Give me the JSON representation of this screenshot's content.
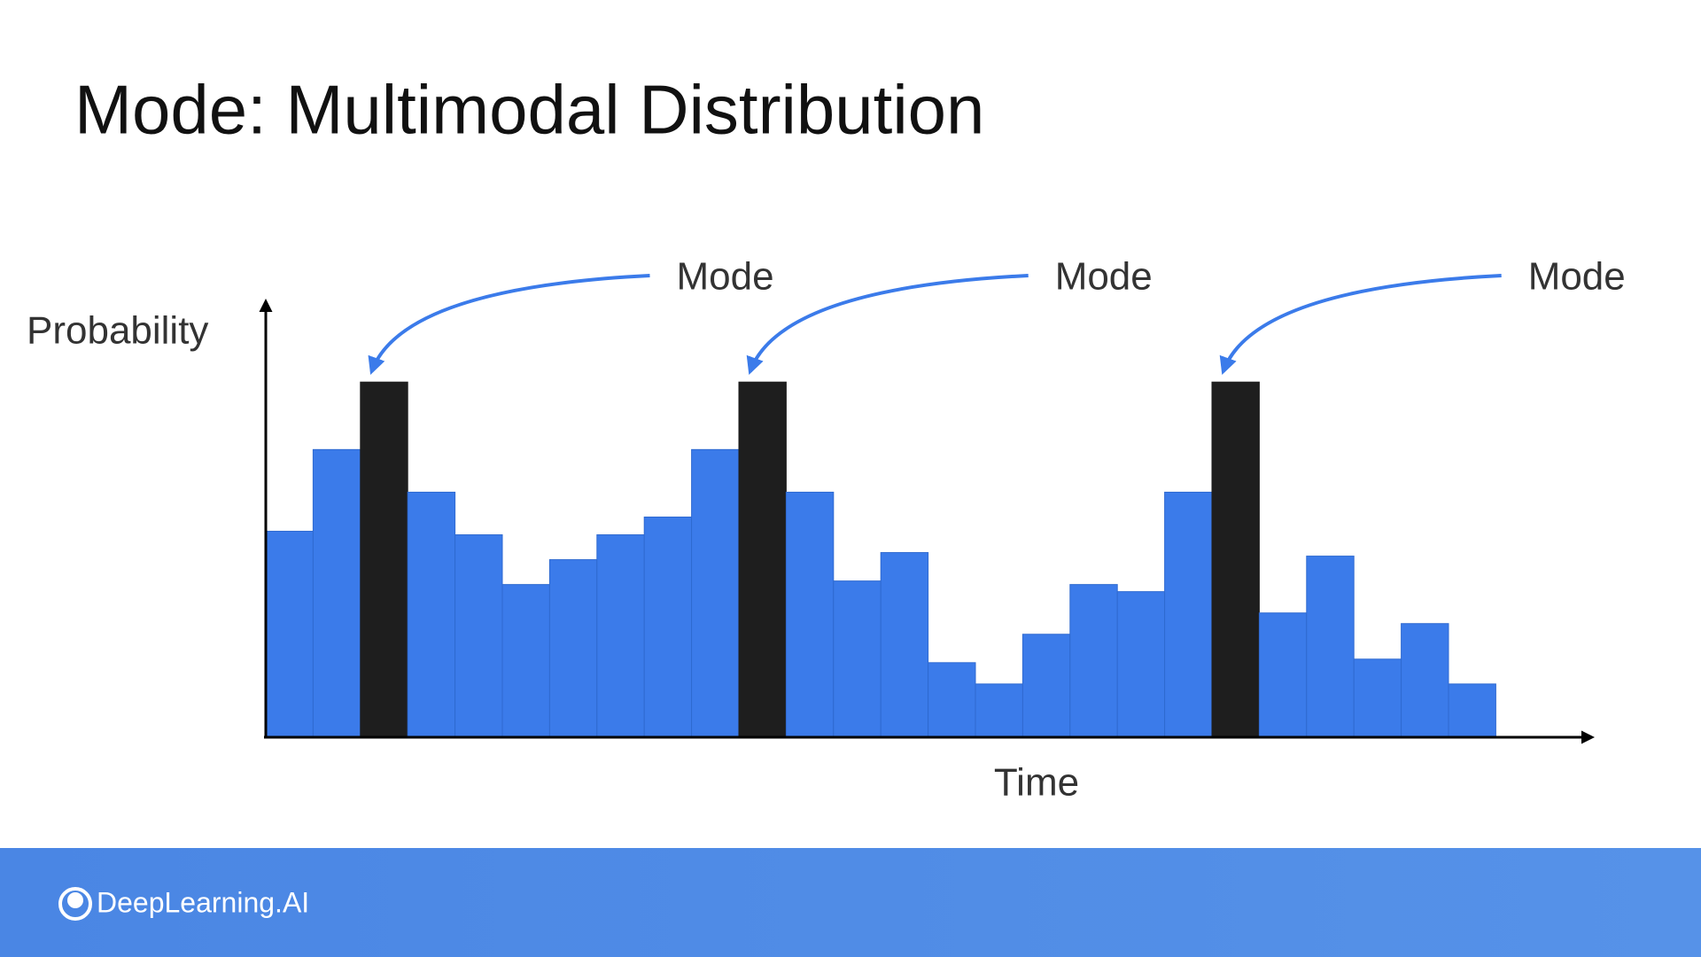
{
  "chart_data": {
    "type": "bar",
    "title": "Mode: Multimodal Distribution",
    "y_label": "Probability",
    "x_label": "Time",
    "categories": [
      null,
      null,
      null,
      null,
      null,
      null,
      null,
      null,
      null,
      null,
      null,
      null,
      null,
      null,
      null,
      null,
      null,
      null,
      null,
      null,
      null,
      null,
      null,
      null,
      null,
      null
    ],
    "values": [
      58,
      81,
      100,
      69,
      57,
      43,
      50,
      57,
      62,
      81,
      100,
      69,
      44,
      52,
      21,
      15,
      29,
      43,
      41,
      69,
      100,
      35,
      51,
      22,
      32,
      15
    ],
    "colors": [
      "#3b7bea",
      "#3b7bea",
      "#1e1e1e",
      "#3b7bea",
      "#3b7bea",
      "#3b7bea",
      "#3b7bea",
      "#3b7bea",
      "#3b7bea",
      "#3b7bea",
      "#1e1e1e",
      "#3b7bea",
      "#3b7bea",
      "#3b7bea",
      "#3b7bea",
      "#3b7bea",
      "#3b7bea",
      "#3b7bea",
      "#3b7bea",
      "#3b7bea",
      "#1e1e1e",
      "#3b7bea",
      "#3b7bea",
      "#3b7bea",
      "#3b7bea",
      "#3b7bea"
    ],
    "highlight_color": "#1e1e1e",
    "annotations": [
      "Mode",
      "Mode",
      "Mode"
    ],
    "annotation_color": "#3b7bea",
    "ylim": [
      0,
      122
    ]
  },
  "footer": {
    "brand": "DeepLearning.AI"
  }
}
